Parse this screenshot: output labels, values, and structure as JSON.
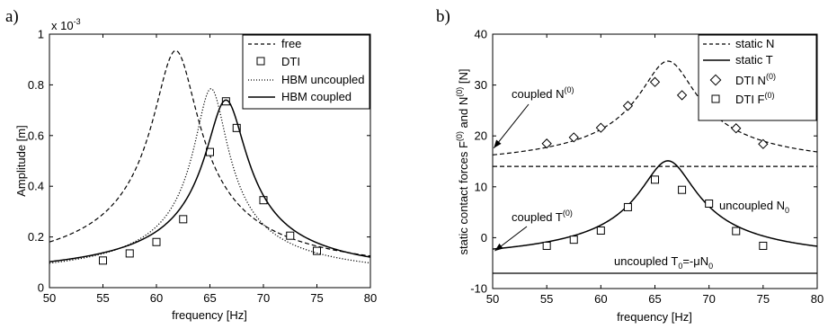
{
  "chart_data": [
    {
      "type": "line",
      "panel_label": "a)",
      "xlabel": "frequency [Hz]",
      "ylabel": "Amplitude [m]",
      "y_multiplier": "x 10",
      "y_multiplier_exp": "-3",
      "xlim": [
        50,
        80
      ],
      "ylim": [
        0,
        1
      ],
      "x_ticks": [
        50,
        55,
        60,
        65,
        70,
        75,
        80
      ],
      "y_ticks": [
        0,
        0.2,
        0.4,
        0.6,
        0.8,
        1
      ],
      "y_tick_labels": [
        "0",
        "0.2",
        "0.4",
        "0.6",
        "0.8",
        "1"
      ],
      "grid": false,
      "legend_position": "top-right",
      "series": [
        {
          "name": "free",
          "kind": "curve",
          "style": "dashed",
          "peak_x": 61.8,
          "peak_y": 0.935,
          "width": 2.1,
          "base": 0.02,
          "x": [
            50,
            55,
            58,
            60,
            61,
            61.8,
            63,
            65,
            70,
            75,
            80
          ],
          "y": [
            0.125,
            0.24,
            0.42,
            0.66,
            0.86,
            0.935,
            0.79,
            0.44,
            0.17,
            0.11,
            0.075
          ]
        },
        {
          "name": "DTI",
          "kind": "markers",
          "marker": "square",
          "x": [
            55,
            57.5,
            60,
            62.5,
            65,
            66.5,
            67.5,
            70,
            72.5,
            75
          ],
          "y": [
            0.107,
            0.135,
            0.18,
            0.27,
            0.535,
            0.735,
            0.63,
            0.345,
            0.205,
            0.145
          ]
        },
        {
          "name": "HBM uncoupled",
          "kind": "curve",
          "style": "dotted",
          "peak_x": 65.1,
          "peak_y": 0.785,
          "width": 1.55,
          "base": 0.018,
          "x": [
            50,
            60,
            63,
            65.1,
            67,
            70,
            80
          ],
          "y": [
            0.08,
            0.18,
            0.36,
            0.785,
            0.56,
            0.23,
            0.085
          ]
        },
        {
          "name": "HBM coupled",
          "kind": "curve",
          "style": "solid",
          "peak_x": 66.5,
          "peak_y": 0.74,
          "width": 1.9,
          "base": 0.02,
          "x": [
            50,
            55,
            60,
            63,
            65,
            66.5,
            68,
            70,
            75,
            80
          ],
          "y": [
            0.078,
            0.105,
            0.18,
            0.31,
            0.53,
            0.74,
            0.58,
            0.35,
            0.15,
            0.09
          ]
        }
      ]
    },
    {
      "type": "line",
      "panel_label": "b)",
      "xlabel": "frequency [Hz]",
      "ylabel_parts": [
        "static contact forces F",
        "(0)",
        " and N",
        "(0)",
        " [N]"
      ],
      "xlim": [
        50,
        80
      ],
      "ylim": [
        -10,
        40
      ],
      "x_ticks": [
        50,
        55,
        60,
        65,
        70,
        75,
        80
      ],
      "y_ticks": [
        -10,
        0,
        10,
        20,
        30,
        40
      ],
      "grid": false,
      "legend_position": "top-right",
      "series": [
        {
          "name": "static N",
          "kind": "curve",
          "style": "dashed",
          "peak_x": 66.2,
          "peak_y": 34.7,
          "width": 2.6,
          "base": 12.8,
          "x": [
            50,
            55,
            60,
            63,
            66.2,
            68,
            70,
            75,
            80
          ],
          "y": [
            17.5,
            18.5,
            21.0,
            25.5,
            34.7,
            31.0,
            26.0,
            19.0,
            16.0
          ]
        },
        {
          "name": "static T",
          "kind": "curve",
          "style": "solid",
          "peak_x": 66.2,
          "peak_y": 15.1,
          "width": 2.6,
          "base": -5.5,
          "x": [
            50,
            55,
            60,
            63,
            66.2,
            68,
            70,
            75,
            80
          ],
          "y": [
            -2.6,
            -1.5,
            1.0,
            5.5,
            15.1,
            11.0,
            6.0,
            -1.0,
            -4.2
          ]
        },
        {
          "name": "DTI N",
          "name_sup": "(0)",
          "kind": "markers",
          "marker": "diamond",
          "x": [
            55,
            57.5,
            60,
            62.5,
            65,
            67.5,
            70,
            72.5,
            75
          ],
          "y": [
            18.5,
            19.7,
            21.6,
            25.9,
            30.6,
            28.0,
            26.6,
            21.5,
            18.4
          ]
        },
        {
          "name": "DTI F",
          "name_sup": "(0)",
          "kind": "markers",
          "marker": "square",
          "x": [
            55,
            57.5,
            60,
            62.5,
            65,
            67.5,
            70,
            72.5,
            75
          ],
          "y": [
            -1.6,
            -0.4,
            1.4,
            6.0,
            11.4,
            9.4,
            6.7,
            1.3,
            -1.6
          ]
        },
        {
          "name": "uncoupled N",
          "kind": "hline",
          "style": "dashed",
          "y_value": 14.0
        },
        {
          "name": "uncoupled T",
          "kind": "hline",
          "style": "solid",
          "y_value": -7.0
        }
      ],
      "annotations": {
        "coupled_N": {
          "text": "coupled N",
          "sup": "(0)",
          "arrow_to": [
            50.1,
            17.6
          ]
        },
        "coupled_T": {
          "text": "coupled T",
          "sup": "(0)",
          "arrow_to": [
            50.2,
            -2.6
          ]
        },
        "uncoupled_N": {
          "text": "uncoupled N",
          "sub": "0"
        },
        "uncoupled_T": {
          "text": "uncoupled T",
          "sub1": "0",
          "mid": "=-μN",
          "sub2": "0"
        }
      }
    }
  ]
}
